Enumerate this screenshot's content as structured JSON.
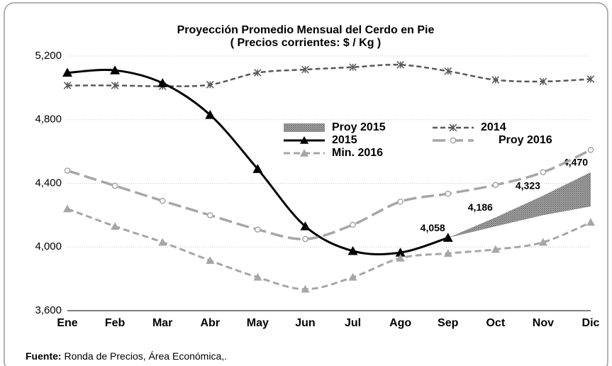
{
  "chart_data": {
    "type": "line",
    "title": "Proyección Promedio Mensual del Cerdo en Pie",
    "subtitle": "( Precios corrientes: $ / Kg )",
    "categories": [
      "Ene",
      "Feb",
      "Mar",
      "Abr",
      "May",
      "Jun",
      "Jul",
      "Ago",
      "Sep",
      "Oct",
      "Nov",
      "Dic"
    ],
    "ylim": [
      3600,
      5200
    ],
    "yticks": [
      {
        "value": 3600,
        "label": "3,600"
      },
      {
        "value": 4000,
        "label": "4,000"
      },
      {
        "value": 4400,
        "label": "4,400"
      },
      {
        "value": 4800,
        "label": "4,800"
      },
      {
        "value": 5200,
        "label": "5,200"
      }
    ],
    "grid": true,
    "series": [
      {
        "name": "Proy 2015",
        "style": "area",
        "color": "#8c8c8c",
        "values": [
          null,
          null,
          null,
          null,
          null,
          null,
          null,
          null,
          4058,
          4186,
          4323,
          4470
        ],
        "value_labels": [
          null,
          null,
          null,
          null,
          null,
          null,
          null,
          null,
          "4,058",
          "4,186",
          "4,323",
          "4,470"
        ],
        "lower": [
          null,
          null,
          null,
          null,
          null,
          null,
          null,
          null,
          4058,
          4130,
          4200,
          4255
        ]
      },
      {
        "name": "2014",
        "style": "line",
        "marker": "star",
        "color": "#595959",
        "values": [
          5015,
          5015,
          5010,
          5020,
          5095,
          5115,
          5130,
          5145,
          5105,
          5050,
          5040,
          5055
        ]
      },
      {
        "name": "2015",
        "style": "line",
        "marker": "triangle",
        "color": "#000000",
        "values": [
          5095,
          5110,
          5030,
          4830,
          4490,
          4130,
          3975,
          3965,
          4058,
          null,
          null,
          null
        ]
      },
      {
        "name": "Proy 2016",
        "style": "line",
        "marker": "circle",
        "color": "#a6a6a6",
        "values": [
          4480,
          4385,
          4290,
          4200,
          4110,
          4050,
          4140,
          4285,
          4335,
          4390,
          4470,
          4610
        ]
      },
      {
        "name": "Min. 2016",
        "style": "line",
        "marker": "triangle",
        "color": "#a6a6a6",
        "values": [
          4240,
          4130,
          4030,
          3915,
          3810,
          3735,
          3810,
          3930,
          3960,
          3985,
          4030,
          4155
        ]
      }
    ]
  },
  "source_label": "Fuente:",
  "source_text": "Ronda de Precios, Área Económica,."
}
